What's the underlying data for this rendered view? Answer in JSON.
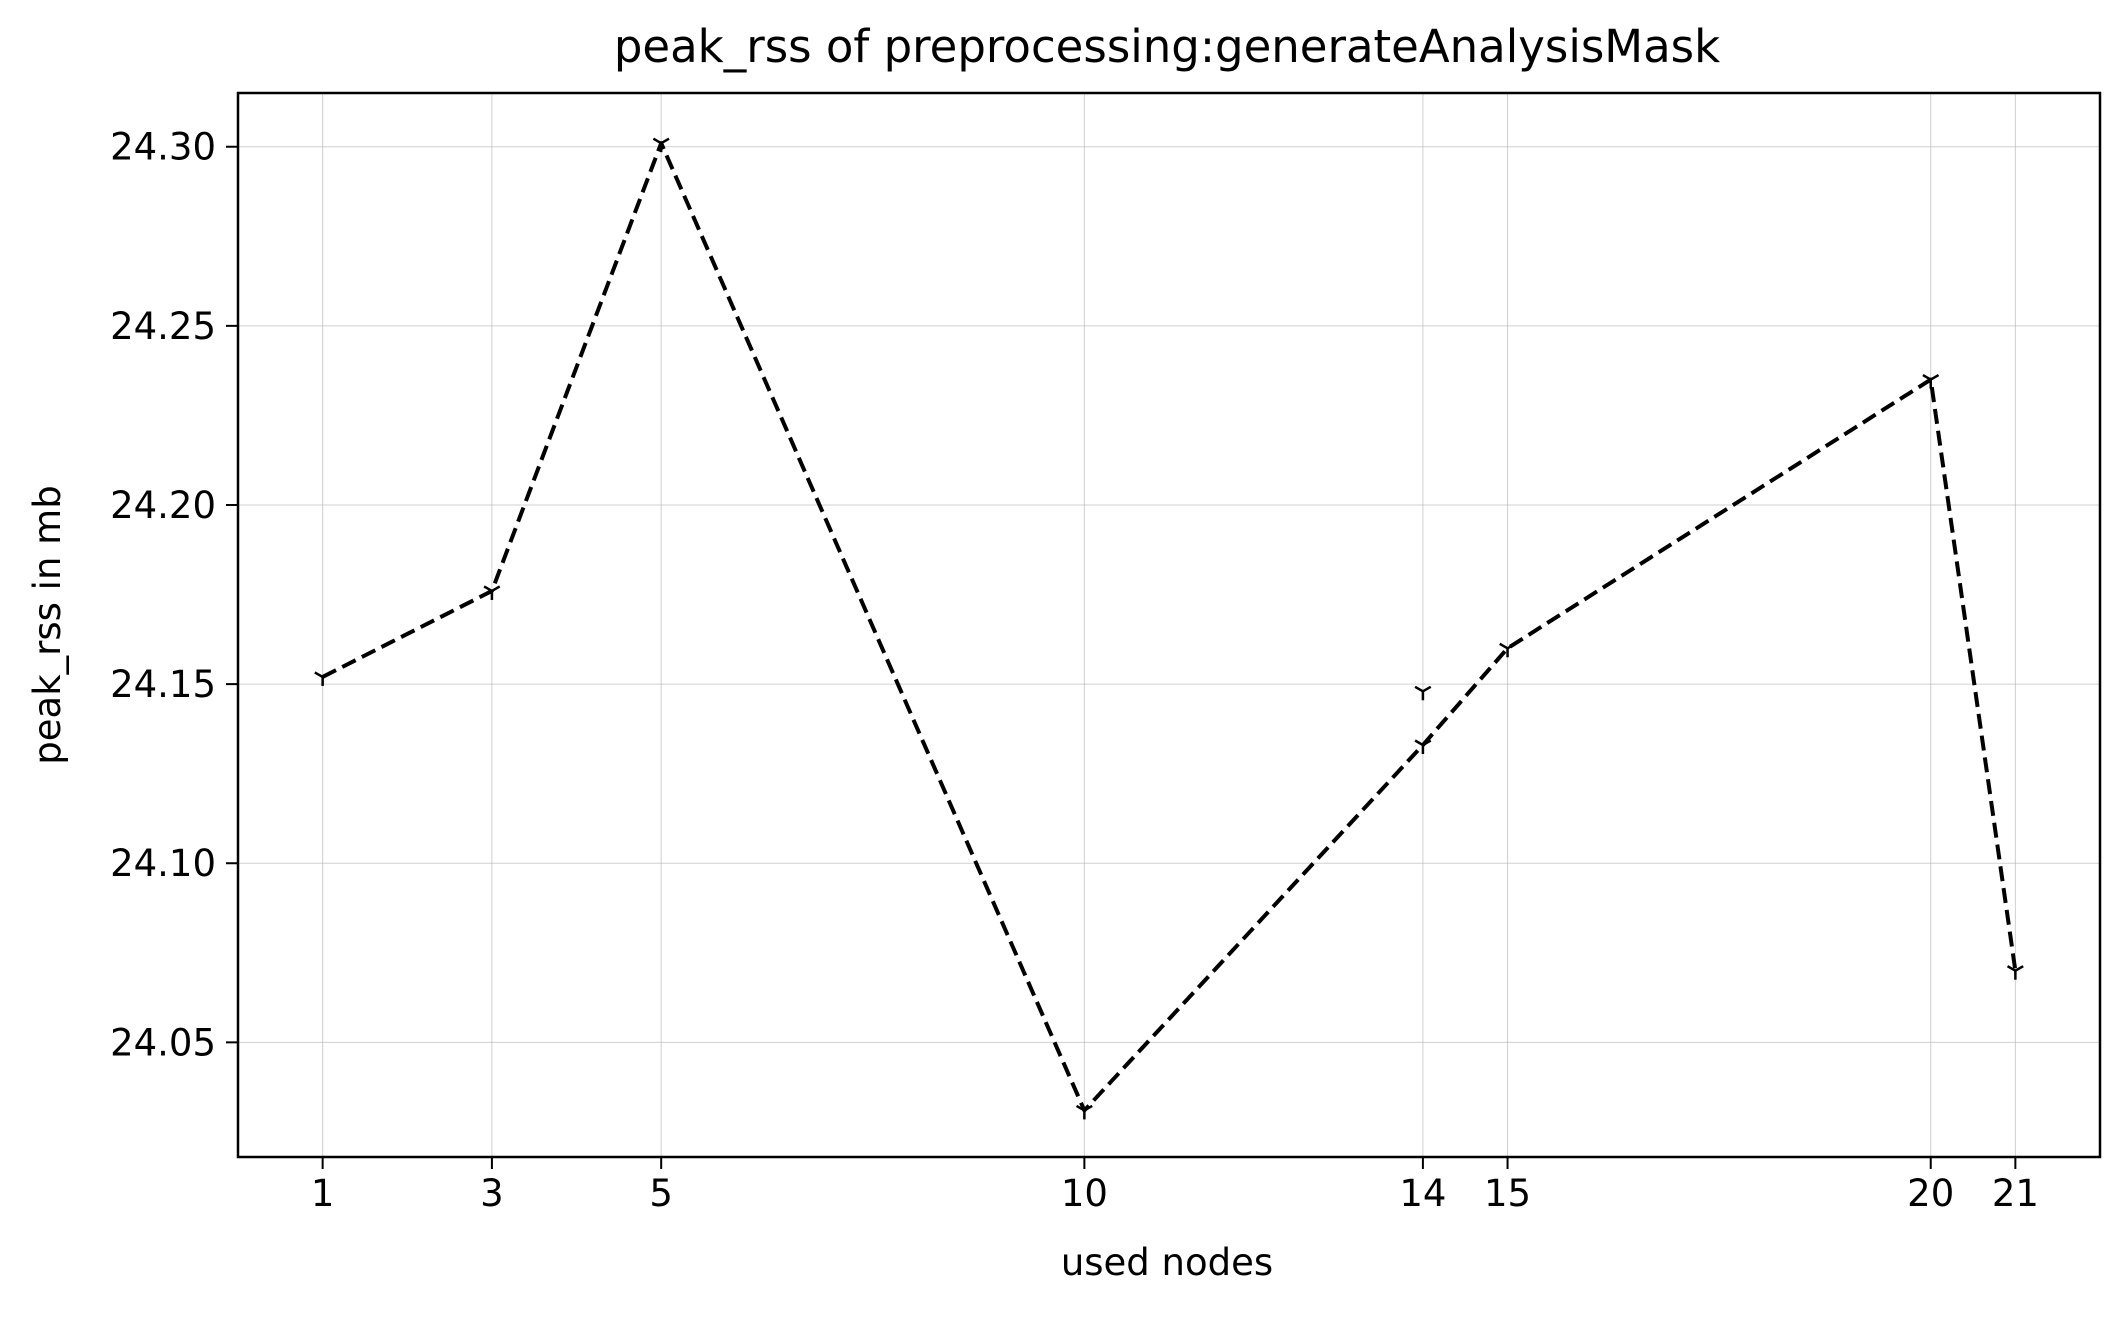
{
  "chart_data": {
    "type": "line",
    "title": "peak_rss of preprocessing:generateAnalysisMask",
    "xlabel": "used nodes",
    "ylabel": "peak_rss in mb",
    "x_ticks": [
      1,
      3,
      5,
      10,
      14,
      15,
      20,
      21
    ],
    "y_ticks": [
      24.05,
      24.1,
      24.15,
      24.2,
      24.25,
      24.3
    ],
    "y_tick_labels": [
      "24.05",
      "24.10",
      "24.15",
      "24.20",
      "24.25",
      "24.30"
    ],
    "xlim": [
      0,
      22
    ],
    "ylim": [
      24.018,
      24.315
    ],
    "grid": true,
    "legend": "none",
    "series": [
      {
        "line_style": "dashed",
        "marker": "tri_down",
        "color": "#000000",
        "points": [
          {
            "x": 1,
            "y": 24.152
          },
          {
            "x": 3,
            "y": 24.176
          },
          {
            "x": 5,
            "y": 24.301
          },
          {
            "x": 10,
            "y": 24.031
          },
          {
            "x": 14,
            "y": 24.133
          },
          {
            "x": 15,
            "y": 24.16
          },
          {
            "x": 20,
            "y": 24.235
          },
          {
            "x": 21,
            "y": 24.07
          }
        ]
      }
    ],
    "extra_points": [
      {
        "x": 14,
        "y": 24.148
      }
    ]
  }
}
